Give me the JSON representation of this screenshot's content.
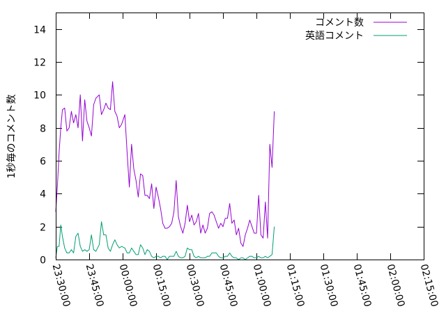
{
  "chart_data": {
    "type": "line",
    "ylabel": "1秒毎のコメント数",
    "xlabel": "",
    "title": "",
    "xlim": [
      "23:30:00",
      "02:15:00"
    ],
    "ylim": [
      0,
      15
    ],
    "grid": false,
    "legend_position": "top-right",
    "x_ticks": [
      "23:30:00",
      "23:45:00",
      "00:00:00",
      "00:15:00",
      "00:30:00",
      "00:45:00",
      "01:00:00",
      "01:15:00",
      "01:30:00",
      "01:45:00",
      "02:00:00",
      "02:15:00"
    ],
    "y_ticks": [
      "0",
      "2",
      "4",
      "6",
      "8",
      "10",
      "12",
      "14"
    ],
    "series": [
      {
        "name": "コメント数",
        "color": "#9400d3",
        "points": [
          [
            "23:30:00",
            2.9
          ],
          [
            "23:30:45",
            4.5
          ],
          [
            "23:31:30",
            6.5
          ],
          [
            "23:32:15",
            8.0
          ],
          [
            "23:33:00",
            9.1
          ],
          [
            "23:34:00",
            9.2
          ],
          [
            "23:35:00",
            7.8
          ],
          [
            "23:36:00",
            8.0
          ],
          [
            "23:37:00",
            9.0
          ],
          [
            "23:38:00",
            8.3
          ],
          [
            "23:39:00",
            8.8
          ],
          [
            "23:40:00",
            8.0
          ],
          [
            "23:41:00",
            10.0
          ],
          [
            "23:42:00",
            7.2
          ],
          [
            "23:43:00",
            9.7
          ],
          [
            "23:44:00",
            8.4
          ],
          [
            "23:45:00",
            8.0
          ],
          [
            "23:46:00",
            7.5
          ],
          [
            "23:47:00",
            9.4
          ],
          [
            "23:48:00",
            9.8
          ],
          [
            "23:49:30",
            10.0
          ],
          [
            "23:50:30",
            8.8
          ],
          [
            "23:51:30",
            9.1
          ],
          [
            "23:52:30",
            9.5
          ],
          [
            "23:53:30",
            9.2
          ],
          [
            "23:54:30",
            9.1
          ],
          [
            "23:55:30",
            10.8
          ],
          [
            "23:56:30",
            9.0
          ],
          [
            "23:57:30",
            8.7
          ],
          [
            "23:58:30",
            8.0
          ],
          [
            "23:59:30",
            8.2
          ],
          [
            "00:01:00",
            8.8
          ],
          [
            "00:02:00",
            6.5
          ],
          [
            "00:03:00",
            4.4
          ],
          [
            "00:04:00",
            7.0
          ],
          [
            "00:05:00",
            5.5
          ],
          [
            "00:06:00",
            4.8
          ],
          [
            "00:07:00",
            3.8
          ],
          [
            "00:08:00",
            5.2
          ],
          [
            "00:09:00",
            5.1
          ],
          [
            "00:10:00",
            3.9
          ],
          [
            "00:11:00",
            3.9
          ],
          [
            "00:12:00",
            3.7
          ],
          [
            "00:13:00",
            4.6
          ],
          [
            "00:14:00",
            3.1
          ],
          [
            "00:15:00",
            4.4
          ],
          [
            "00:16:00",
            3.8
          ],
          [
            "00:17:00",
            3.1
          ],
          [
            "00:18:00",
            2.2
          ],
          [
            "00:19:00",
            1.9
          ],
          [
            "00:20:00",
            1.9
          ],
          [
            "00:21:00",
            2.0
          ],
          [
            "00:22:00",
            2.2
          ],
          [
            "00:23:00",
            2.9
          ],
          [
            "00:24:00",
            4.8
          ],
          [
            "00:25:00",
            2.6
          ],
          [
            "00:26:00",
            2.0
          ],
          [
            "00:27:00",
            1.6
          ],
          [
            "00:28:00",
            2.2
          ],
          [
            "00:29:00",
            3.3
          ],
          [
            "00:30:00",
            2.3
          ],
          [
            "00:31:00",
            2.7
          ],
          [
            "00:32:00",
            2.1
          ],
          [
            "00:33:00",
            2.3
          ],
          [
            "00:34:00",
            2.8
          ],
          [
            "00:35:00",
            1.6
          ],
          [
            "00:36:00",
            2.1
          ],
          [
            "00:37:00",
            1.6
          ],
          [
            "00:38:00",
            1.9
          ],
          [
            "00:39:00",
            2.8
          ],
          [
            "00:40:00",
            2.9
          ],
          [
            "00:41:00",
            2.7
          ],
          [
            "00:42:00",
            2.3
          ],
          [
            "00:43:00",
            1.9
          ],
          [
            "00:44:00",
            2.2
          ],
          [
            "00:45:00",
            2.0
          ],
          [
            "00:46:00",
            2.5
          ],
          [
            "00:47:00",
            2.5
          ],
          [
            "00:48:00",
            3.4
          ],
          [
            "00:49:00",
            2.2
          ],
          [
            "00:50:00",
            2.4
          ],
          [
            "00:51:00",
            1.5
          ],
          [
            "00:52:00",
            1.9
          ],
          [
            "00:53:00",
            1.0
          ],
          [
            "00:54:00",
            0.8
          ],
          [
            "00:55:00",
            1.5
          ],
          [
            "00:56:00",
            1.9
          ],
          [
            "00:57:00",
            2.4
          ],
          [
            "00:58:00",
            2.0
          ],
          [
            "00:59:00",
            1.6
          ],
          [
            "01:00:00",
            1.6
          ],
          [
            "01:01:00",
            3.9
          ],
          [
            "01:02:00",
            1.5
          ],
          [
            "01:03:00",
            1.3
          ],
          [
            "01:04:00",
            3.5
          ],
          [
            "01:05:00",
            1.3
          ],
          [
            "01:06:00",
            7.0
          ],
          [
            "01:07:00",
            5.6
          ],
          [
            "01:08:00",
            9.0
          ]
        ]
      },
      {
        "name": "英語コメント",
        "color": "#009e73",
        "points": [
          [
            "23:30:00",
            0.1
          ],
          [
            "23:30:45",
            0.8
          ],
          [
            "23:31:30",
            0.8
          ],
          [
            "23:32:15",
            2.1
          ],
          [
            "23:33:00",
            1.4
          ],
          [
            "23:34:00",
            0.7
          ],
          [
            "23:35:00",
            0.4
          ],
          [
            "23:36:00",
            0.4
          ],
          [
            "23:37:00",
            0.6
          ],
          [
            "23:38:00",
            0.4
          ],
          [
            "23:39:00",
            1.4
          ],
          [
            "23:40:00",
            1.6
          ],
          [
            "23:41:00",
            0.8
          ],
          [
            "23:42:00",
            0.5
          ],
          [
            "23:43:00",
            0.6
          ],
          [
            "23:44:00",
            0.5
          ],
          [
            "23:45:00",
            0.6
          ],
          [
            "23:46:00",
            1.5
          ],
          [
            "23:47:00",
            0.6
          ],
          [
            "23:48:00",
            0.5
          ],
          [
            "23:49:30",
            0.9
          ],
          [
            "23:50:30",
            2.3
          ],
          [
            "23:51:30",
            1.5
          ],
          [
            "23:52:30",
            1.5
          ],
          [
            "23:53:30",
            0.7
          ],
          [
            "23:54:30",
            0.5
          ],
          [
            "23:55:30",
            0.9
          ],
          [
            "23:56:30",
            1.2
          ],
          [
            "23:57:30",
            0.9
          ],
          [
            "23:58:30",
            0.7
          ],
          [
            "23:59:30",
            0.8
          ],
          [
            "00:01:00",
            0.7
          ],
          [
            "00:02:00",
            0.4
          ],
          [
            "00:03:00",
            0.4
          ],
          [
            "00:04:00",
            0.7
          ],
          [
            "00:05:00",
            0.5
          ],
          [
            "00:06:00",
            0.3
          ],
          [
            "00:07:00",
            0.3
          ],
          [
            "00:08:00",
            0.9
          ],
          [
            "00:09:00",
            0.7
          ],
          [
            "00:10:00",
            0.3
          ],
          [
            "00:11:00",
            0.6
          ],
          [
            "00:12:00",
            0.5
          ],
          [
            "00:13:00",
            0.2
          ],
          [
            "00:14:00",
            0.1
          ],
          [
            "00:15:00",
            0.2
          ],
          [
            "00:16:00",
            0.2
          ],
          [
            "00:17:00",
            0.1
          ],
          [
            "00:18:00",
            0.2
          ],
          [
            "00:19:00",
            0.2
          ],
          [
            "00:20:00",
            0.0
          ],
          [
            "00:21:00",
            0.2
          ],
          [
            "00:22:00",
            0.2
          ],
          [
            "00:23:00",
            0.2
          ],
          [
            "00:24:00",
            0.5
          ],
          [
            "00:25:00",
            0.2
          ],
          [
            "00:26:00",
            0.1
          ],
          [
            "00:27:00",
            0.1
          ],
          [
            "00:28:00",
            0.2
          ],
          [
            "00:29:00",
            0.7
          ],
          [
            "00:30:00",
            0.6
          ],
          [
            "00:31:00",
            0.6
          ],
          [
            "00:32:00",
            0.2
          ],
          [
            "00:33:00",
            0.1
          ],
          [
            "00:34:00",
            0.2
          ],
          [
            "00:35:00",
            0.1
          ],
          [
            "00:36:00",
            0.1
          ],
          [
            "00:37:00",
            0.1
          ],
          [
            "00:38:00",
            0.2
          ],
          [
            "00:39:00",
            0.2
          ],
          [
            "00:40:00",
            0.4
          ],
          [
            "00:41:00",
            0.4
          ],
          [
            "00:42:00",
            0.4
          ],
          [
            "00:43:00",
            0.2
          ],
          [
            "00:44:00",
            0.1
          ],
          [
            "00:45:00",
            0.1
          ],
          [
            "00:46:00",
            0.2
          ],
          [
            "00:47:00",
            0.2
          ],
          [
            "00:48:00",
            0.4
          ],
          [
            "00:49:00",
            0.2
          ],
          [
            "00:50:00",
            0.1
          ],
          [
            "00:51:00",
            0.1
          ],
          [
            "00:52:00",
            0.0
          ],
          [
            "00:53:00",
            0.1
          ],
          [
            "00:54:00",
            0.1
          ],
          [
            "00:55:00",
            0.0
          ],
          [
            "00:56:00",
            0.1
          ],
          [
            "00:57:00",
            0.2
          ],
          [
            "00:58:00",
            0.2
          ],
          [
            "00:59:00",
            0.1
          ],
          [
            "01:00:00",
            0.1
          ],
          [
            "01:01:00",
            0.2
          ],
          [
            "01:02:00",
            0.1
          ],
          [
            "01:03:00",
            0.1
          ],
          [
            "01:04:00",
            0.2
          ],
          [
            "01:05:00",
            0.1
          ],
          [
            "01:06:00",
            0.2
          ],
          [
            "01:07:00",
            0.3
          ],
          [
            "01:08:00",
            2.0
          ]
        ]
      }
    ]
  }
}
